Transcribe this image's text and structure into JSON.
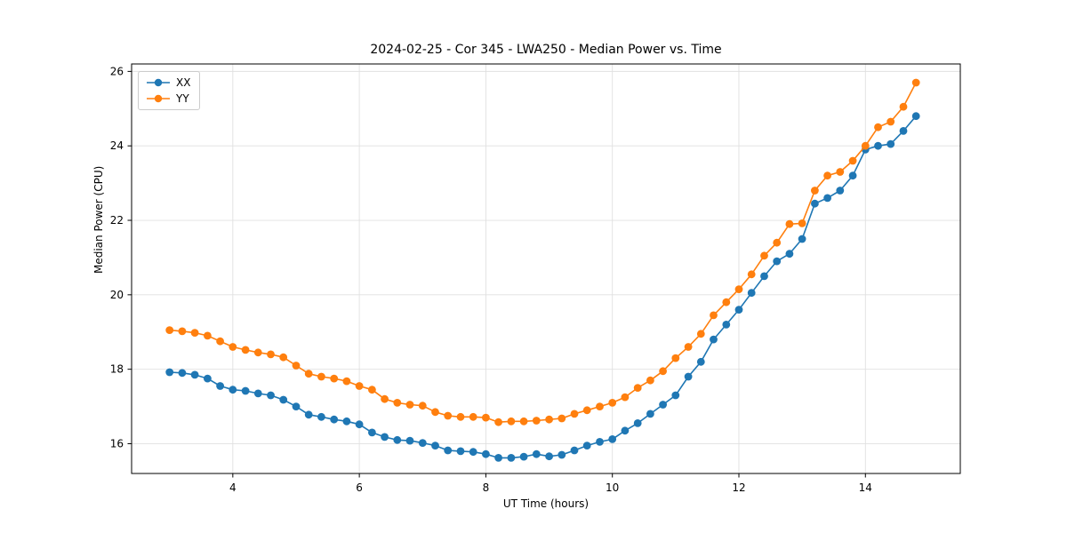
{
  "chart_data": {
    "type": "line",
    "title": "2024-02-25 - Cor 345 - LWA250 - Median Power vs. Time",
    "xlabel": "UT Time (hours)",
    "ylabel": "Median Power (CPU)",
    "xlim": [
      2.4,
      15.5
    ],
    "ylim": [
      15.2,
      26.2
    ],
    "xticks": [
      4,
      6,
      8,
      10,
      12,
      14
    ],
    "yticks": [
      16,
      18,
      20,
      22,
      24,
      26
    ],
    "grid": true,
    "legend_position": "upper left",
    "grid_color": "#e0e0e0",
    "x": [
      3.0,
      3.2,
      3.4,
      3.6,
      3.8,
      4.0,
      4.2,
      4.4,
      4.6,
      4.8,
      5.0,
      5.2,
      5.4,
      5.6,
      5.8,
      6.0,
      6.2,
      6.4,
      6.6,
      6.8,
      7.0,
      7.2,
      7.4,
      7.6,
      7.8,
      8.0,
      8.2,
      8.4,
      8.6,
      8.8,
      9.0,
      9.2,
      9.4,
      9.6,
      9.8,
      10.0,
      10.2,
      10.4,
      10.6,
      10.8,
      11.0,
      11.2,
      11.4,
      11.6,
      11.8,
      12.0,
      12.2,
      12.4,
      12.6,
      12.8,
      13.0,
      13.2,
      13.4,
      13.6,
      13.8,
      14.0,
      14.2,
      14.4,
      14.6,
      14.8
    ],
    "series": [
      {
        "name": "XX",
        "color": "#1f77b4",
        "values": [
          17.92,
          17.9,
          17.85,
          17.75,
          17.55,
          17.45,
          17.42,
          17.35,
          17.3,
          17.18,
          17.0,
          16.78,
          16.72,
          16.65,
          16.6,
          16.52,
          16.3,
          16.18,
          16.1,
          16.08,
          16.02,
          15.95,
          15.82,
          15.8,
          15.78,
          15.72,
          15.62,
          15.62,
          15.65,
          15.72,
          15.66,
          15.7,
          15.82,
          15.95,
          16.05,
          16.12,
          16.35,
          16.55,
          16.8,
          17.05,
          17.3,
          17.8,
          18.2,
          18.8,
          19.2,
          19.6,
          20.05,
          20.5,
          20.9,
          21.1,
          21.5,
          22.45,
          22.6,
          22.8,
          23.2,
          23.9,
          24.0,
          24.05,
          24.4,
          24.8
        ]
      },
      {
        "name": "YY",
        "color": "#ff7f0e",
        "values": [
          19.05,
          19.02,
          18.98,
          18.9,
          18.75,
          18.6,
          18.52,
          18.45,
          18.4,
          18.32,
          18.1,
          17.88,
          17.8,
          17.75,
          17.68,
          17.55,
          17.45,
          17.2,
          17.1,
          17.05,
          17.02,
          16.85,
          16.75,
          16.72,
          16.72,
          16.7,
          16.58,
          16.6,
          16.6,
          16.62,
          16.65,
          16.68,
          16.8,
          16.9,
          17.0,
          17.1,
          17.25,
          17.5,
          17.7,
          17.95,
          18.3,
          18.6,
          18.95,
          19.45,
          19.8,
          20.15,
          20.55,
          21.05,
          21.4,
          21.9,
          21.92,
          22.8,
          23.2,
          23.3,
          23.6,
          24.0,
          24.5,
          24.65,
          25.05,
          25.7
        ]
      }
    ]
  }
}
